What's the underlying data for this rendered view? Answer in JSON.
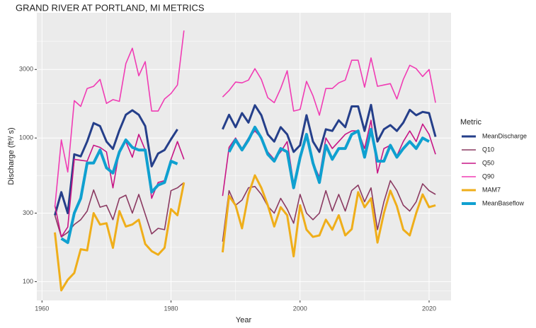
{
  "chart_data": {
    "type": "line",
    "title": "GRAND RIVER AT PORTLAND, MI  METRICS",
    "x_label": "Year",
    "y_label": "Discharge (ft³/ s)",
    "legend_title": "Metric",
    "y_log_scale": true,
    "grid": true,
    "xlim": [
      1959.2,
      2023.4
    ],
    "xticks": [
      1960,
      1980,
      2000,
      2020
    ],
    "ylim": [
      74,
      7450
    ],
    "yticks": [
      100,
      300,
      1000,
      3000
    ],
    "x": [
      1962,
      1963,
      1964,
      1965,
      1966,
      1967,
      1968,
      1969,
      1970,
      1971,
      1972,
      1973,
      1974,
      1975,
      1976,
      1977,
      1978,
      1979,
      1980,
      1981,
      1982,
      1983,
      1984,
      1985,
      1986,
      1987,
      1988,
      1989,
      1990,
      1991,
      1992,
      1993,
      1994,
      1995,
      1996,
      1997,
      1998,
      1999,
      2000,
      2001,
      2002,
      2003,
      2004,
      2005,
      2006,
      2007,
      2008,
      2009,
      2010,
      2011,
      2012,
      2013,
      2014,
      2015,
      2016,
      2017,
      2018,
      2019,
      2020,
      2021
    ],
    "series": [
      {
        "name": "MeanDischarge",
        "color": "#253f8a",
        "values": [
          290,
          420,
          300,
          770,
          745,
          945,
          1270,
          1210,
          945,
          840,
          1130,
          1450,
          1560,
          1450,
          1210,
          635,
          780,
          825,
          980,
          1150,
          null,
          null,
          null,
          null,
          null,
          null,
          1150,
          1450,
          1190,
          1490,
          1280,
          1690,
          1440,
          1060,
          945,
          1190,
          1060,
          800,
          890,
          1440,
          945,
          800,
          1150,
          1120,
          1330,
          1190,
          1660,
          1660,
          1120,
          1700,
          945,
          1150,
          1230,
          1120,
          1280,
          1570,
          1440,
          1520,
          1490,
          1020
        ]
      },
      {
        "name": "Q10",
        "color": "#8b3a62",
        "values": [
          290,
          205,
          220,
          250,
          270,
          310,
          435,
          330,
          340,
          270,
          380,
          400,
          300,
          405,
          295,
          215,
          235,
          230,
          430,
          450,
          490,
          null,
          null,
          null,
          null,
          null,
          190,
          430,
          340,
          370,
          450,
          460,
          405,
          335,
          300,
          380,
          320,
          255,
          405,
          300,
          270,
          300,
          430,
          310,
          405,
          310,
          430,
          470,
          360,
          450,
          230,
          360,
          505,
          430,
          340,
          310,
          360,
          480,
          430,
          405
        ]
      },
      {
        "name": "Q50",
        "color": "#c71585",
        "values": [
          340,
          205,
          240,
          710,
          700,
          690,
          890,
          860,
          800,
          450,
          815,
          945,
          735,
          1060,
          825,
          380,
          490,
          505,
          710,
          945,
          710,
          null,
          null,
          null,
          null,
          null,
          395,
          860,
          1000,
          845,
          1000,
          1120,
          1000,
          800,
          710,
          800,
          945,
          480,
          710,
          1060,
          670,
          535,
          1000,
          845,
          945,
          1060,
          1120,
          1120,
          845,
          1330,
          570,
          845,
          890,
          750,
          945,
          1120,
          945,
          1250,
          1060,
          770
        ]
      },
      {
        "name": "Q90",
        "color": "#f03cb4",
        "values": [
          330,
          970,
          580,
          1820,
          1660,
          2210,
          2290,
          2560,
          1740,
          1850,
          1800,
          3290,
          4220,
          2710,
          3400,
          1540,
          1540,
          1870,
          2040,
          2340,
          5600,
          null,
          null,
          null,
          null,
          null,
          1930,
          2140,
          2450,
          2420,
          2530,
          3040,
          2560,
          1910,
          1760,
          2210,
          2940,
          1540,
          1580,
          2480,
          1970,
          1440,
          2210,
          2210,
          2420,
          2530,
          3480,
          3480,
          2260,
          3610,
          2290,
          2340,
          2390,
          1870,
          2560,
          3210,
          3040,
          2680,
          3000,
          1760
        ]
      },
      {
        "name": "MAM7",
        "color": "#efae1a",
        "values": [
          220,
          87,
          103,
          115,
          168,
          165,
          300,
          250,
          255,
          172,
          310,
          242,
          250,
          270,
          183,
          163,
          154,
          172,
          320,
          290,
          490,
          null,
          null,
          null,
          null,
          null,
          160,
          395,
          340,
          235,
          405,
          550,
          450,
          340,
          242,
          330,
          290,
          150,
          340,
          230,
          205,
          210,
          270,
          230,
          290,
          210,
          232,
          420,
          330,
          380,
          187,
          300,
          430,
          335,
          230,
          210,
          300,
          405,
          330,
          340
        ]
      },
      {
        "name": "MeanBaseflow",
        "color": "#0fa0d0",
        "values": [
          null,
          200,
          187,
          300,
          380,
          670,
          670,
          825,
          620,
          570,
          800,
          970,
          860,
          825,
          825,
          420,
          470,
          490,
          690,
          660,
          null,
          null,
          null,
          null,
          null,
          null,
          null,
          800,
          970,
          825,
          970,
          1190,
          1000,
          770,
          690,
          845,
          800,
          450,
          730,
          1060,
          670,
          490,
          890,
          710,
          845,
          845,
          1060,
          1120,
          735,
          1150,
          690,
          690,
          890,
          735,
          845,
          945,
          845,
          1000,
          945,
          null
        ]
      }
    ]
  }
}
